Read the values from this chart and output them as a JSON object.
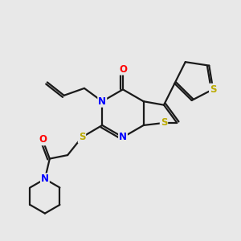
{
  "bg_color": "#e8e8e8",
  "bond_color": "#1a1a1a",
  "bond_width": 1.6,
  "atom_colors": {
    "N": "#0000ff",
    "S": "#bbaa00",
    "O": "#ff0000",
    "C": "#1a1a1a"
  },
  "font_size_atom": 8.5,
  "fig_size": [
    3.0,
    3.0
  ],
  "dpi": 100
}
